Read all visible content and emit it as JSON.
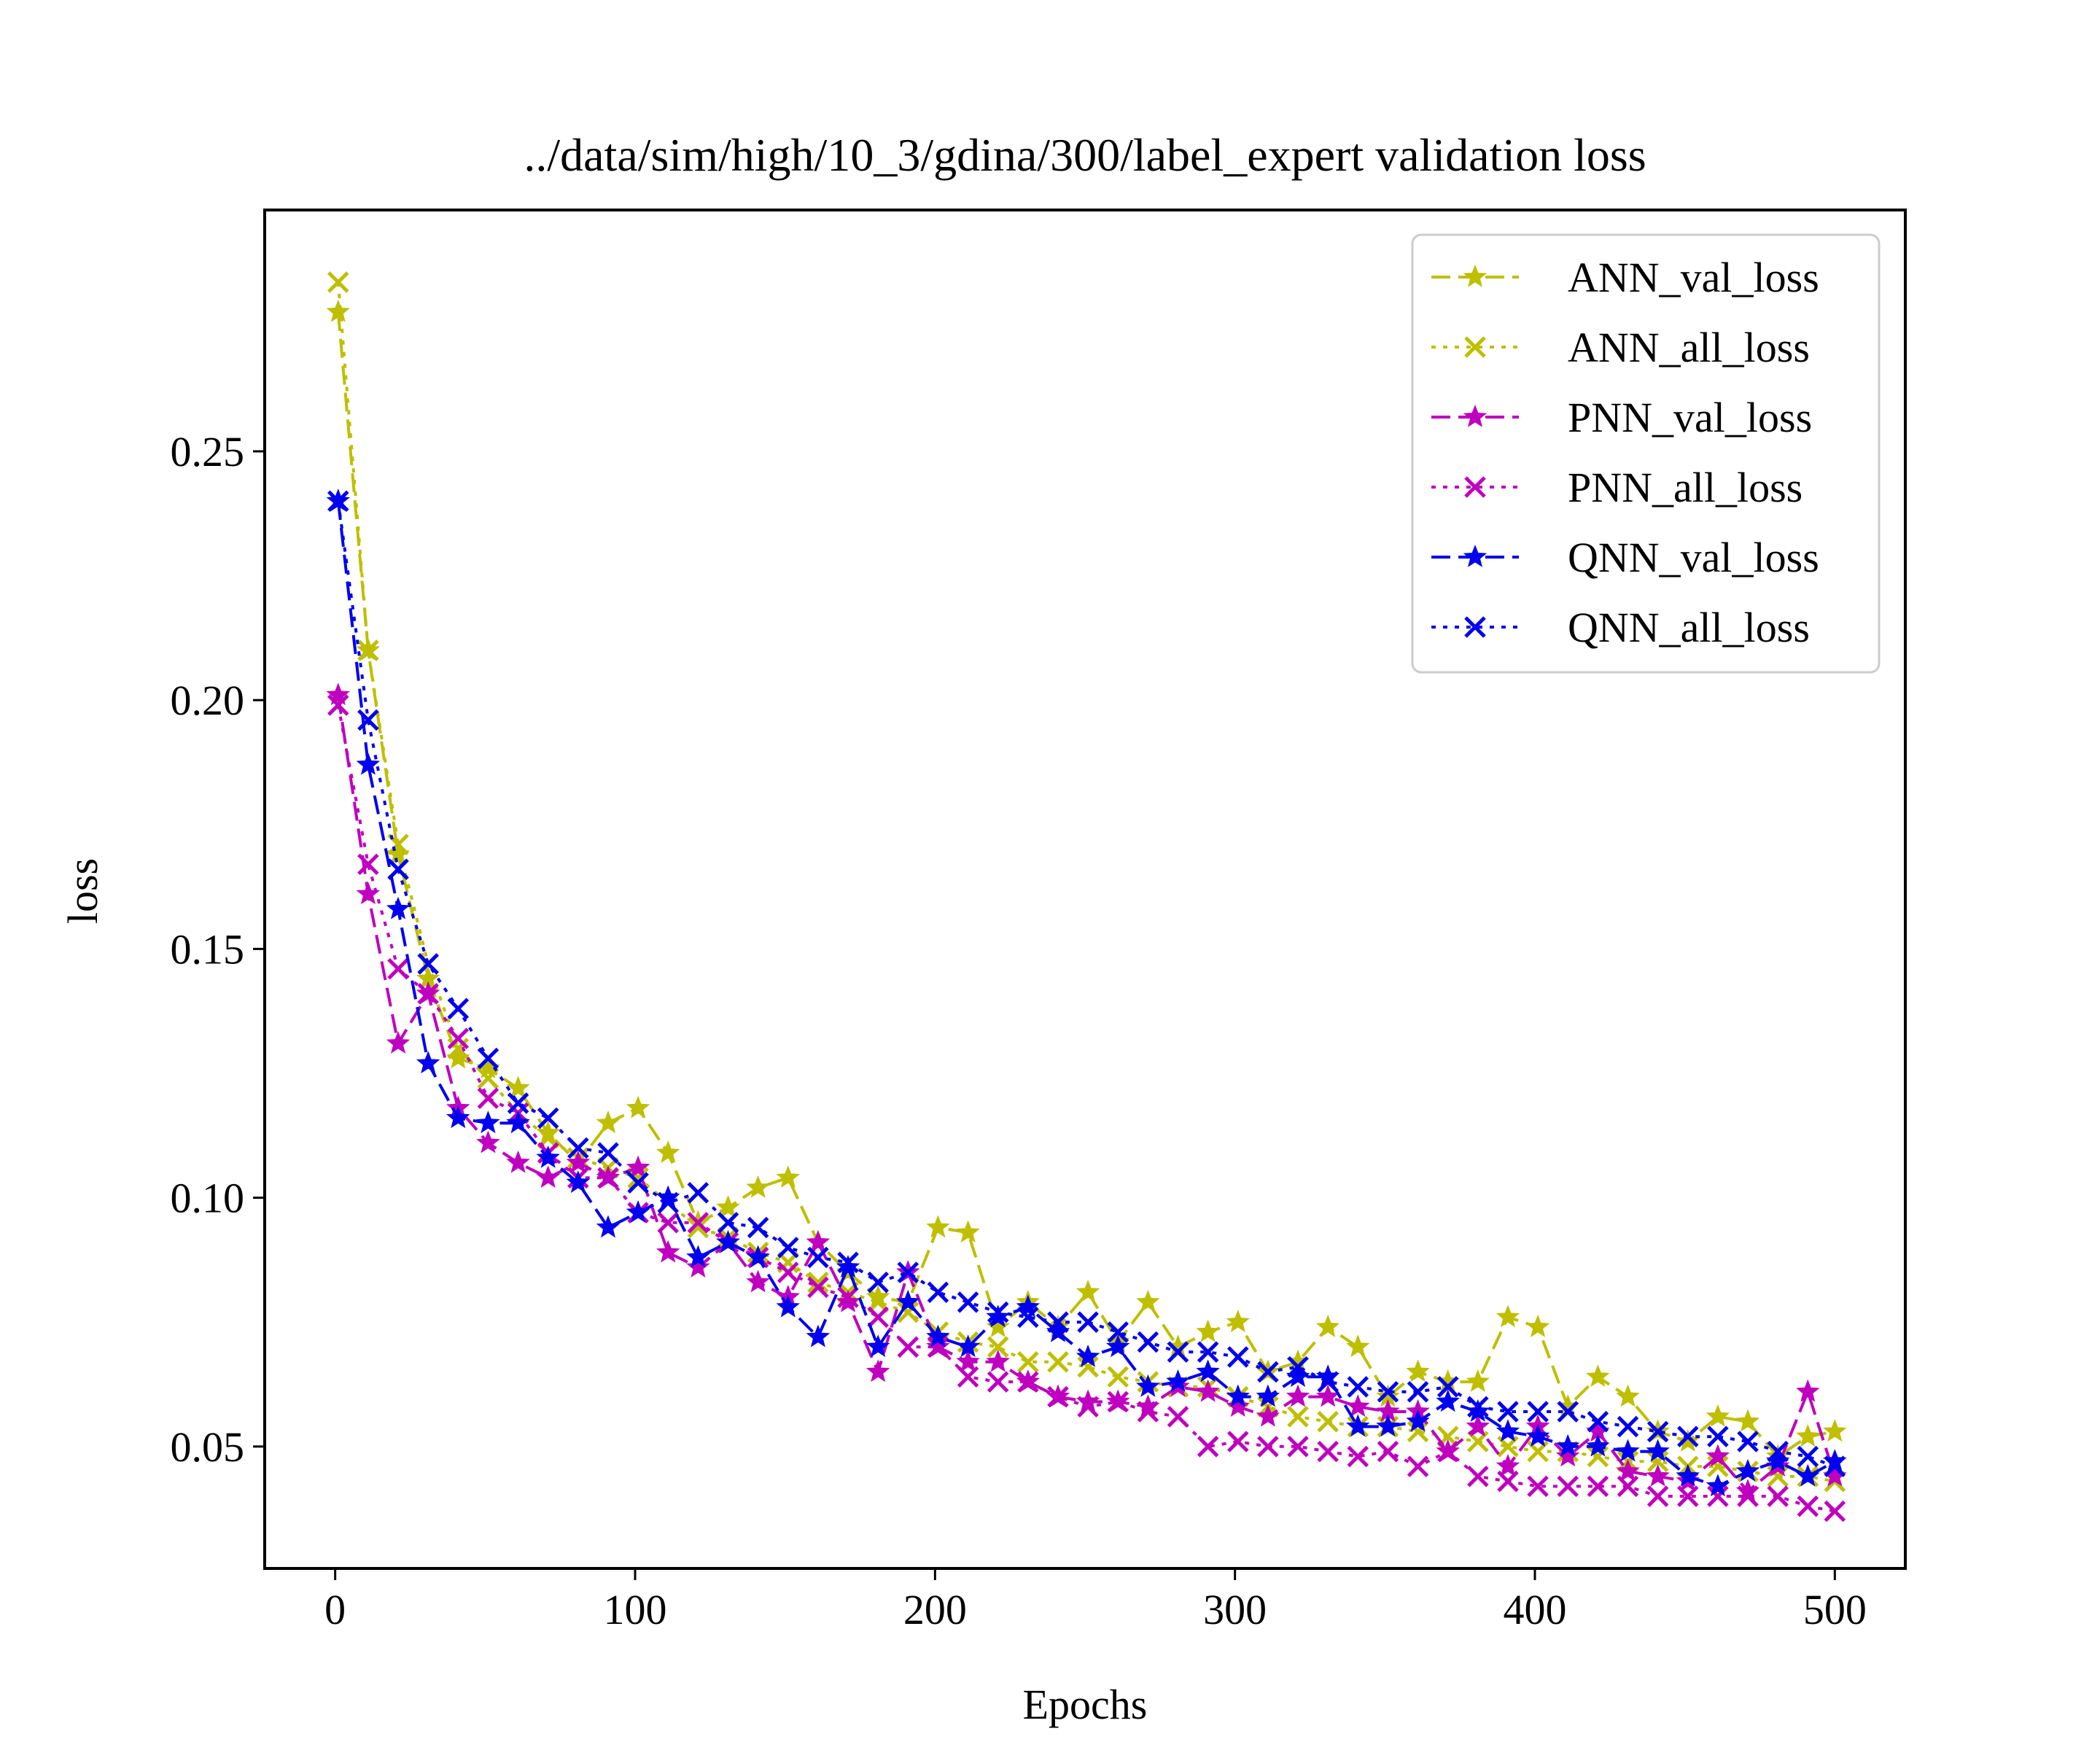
{
  "chart_data": {
    "type": "line",
    "title": "../data/sim/high/10_3/gdina/300/label_expert validation loss",
    "xlabel": "Epochs",
    "ylabel": "loss",
    "xlim": [
      -23.5,
      523.5
    ],
    "ylim": [
      0.0255,
      0.2985
    ],
    "xticks": [
      0,
      100,
      200,
      300,
      400,
      500
    ],
    "xtick_labels": [
      "0",
      "100",
      "200",
      "300",
      "400",
      "500"
    ],
    "yticks": [
      0.05,
      0.1,
      0.15,
      0.2,
      0.25
    ],
    "ytick_labels": [
      "0.05",
      "0.10",
      "0.15",
      "0.20",
      "0.25"
    ],
    "grid": false,
    "legend_position": "top-right",
    "x": [
      1,
      11,
      21,
      31,
      41,
      51,
      61,
      71,
      81,
      91,
      101,
      111,
      121,
      131,
      141,
      151,
      161,
      171,
      181,
      191,
      201,
      211,
      221,
      231,
      241,
      251,
      261,
      271,
      281,
      291,
      301,
      311,
      321,
      331,
      341,
      351,
      361,
      371,
      381,
      391,
      401,
      411,
      421,
      431,
      441,
      451,
      461,
      471,
      481,
      491,
      500
    ],
    "series": [
      {
        "name": "ANN_val_loss",
        "color": "#bfbf00",
        "line_style": "dashed",
        "marker": "star",
        "values": [
          0.278,
          0.21,
          0.169,
          0.144,
          0.128,
          0.126,
          0.122,
          0.113,
          0.107,
          0.115,
          0.118,
          0.109,
          0.095,
          0.098,
          0.102,
          0.104,
          0.091,
          0.085,
          0.08,
          0.079,
          0.094,
          0.093,
          0.074,
          0.079,
          0.074,
          0.081,
          0.071,
          0.079,
          0.07,
          0.073,
          0.075,
          0.065,
          0.067,
          0.074,
          0.07,
          0.06,
          0.065,
          0.063,
          0.063,
          0.076,
          0.074,
          0.058,
          0.064,
          0.06,
          0.053,
          0.051,
          0.056,
          0.055,
          0.048,
          0.052,
          0.053
        ]
      },
      {
        "name": "ANN_all_loss",
        "color": "#bfbf00",
        "line_style": "dotted",
        "marker": "x",
        "values": [
          0.284,
          0.21,
          0.171,
          0.147,
          0.13,
          0.124,
          0.117,
          0.112,
          0.108,
          0.106,
          0.104,
          0.099,
          0.094,
          0.092,
          0.089,
          0.087,
          0.083,
          0.081,
          0.079,
          0.077,
          0.073,
          0.071,
          0.07,
          0.067,
          0.067,
          0.066,
          0.064,
          0.063,
          0.062,
          0.062,
          0.06,
          0.058,
          0.056,
          0.055,
          0.054,
          0.054,
          0.053,
          0.052,
          0.051,
          0.05,
          0.049,
          0.049,
          0.048,
          0.047,
          0.047,
          0.046,
          0.046,
          0.045,
          0.044,
          0.044,
          0.043
        ]
      },
      {
        "name": "PNN_val_loss",
        "color": "#bf00bf",
        "line_style": "dashed",
        "marker": "star",
        "values": [
          0.201,
          0.161,
          0.131,
          0.141,
          0.118,
          0.111,
          0.107,
          0.104,
          0.107,
          0.104,
          0.106,
          0.089,
          0.086,
          0.091,
          0.083,
          0.08,
          0.091,
          0.079,
          0.065,
          0.085,
          0.07,
          0.067,
          0.067,
          0.063,
          0.06,
          0.059,
          0.059,
          0.058,
          0.062,
          0.061,
          0.058,
          0.056,
          0.06,
          0.06,
          0.058,
          0.057,
          0.057,
          0.049,
          0.054,
          0.046,
          0.054,
          0.048,
          0.053,
          0.045,
          0.044,
          0.043,
          0.048,
          0.041,
          0.046,
          0.061,
          0.044
        ]
      },
      {
        "name": "PNN_all_loss",
        "color": "#bf00bf",
        "line_style": "dotted",
        "marker": "x",
        "values": [
          0.199,
          0.167,
          0.146,
          0.141,
          0.132,
          0.12,
          0.117,
          0.109,
          0.104,
          0.104,
          0.097,
          0.095,
          0.095,
          0.091,
          0.088,
          0.085,
          0.082,
          0.08,
          0.076,
          0.07,
          0.07,
          0.064,
          0.063,
          0.063,
          0.06,
          0.058,
          0.059,
          0.057,
          0.056,
          0.05,
          0.051,
          0.05,
          0.05,
          0.049,
          0.048,
          0.049,
          0.046,
          0.049,
          0.044,
          0.043,
          0.042,
          0.042,
          0.042,
          0.042,
          0.04,
          0.04,
          0.04,
          0.04,
          0.04,
          0.038,
          0.037
        ]
      },
      {
        "name": "QNN_val_loss",
        "color": "#0000ee",
        "line_style": "dashed",
        "marker": "star",
        "values": [
          0.24,
          0.187,
          0.158,
          0.127,
          0.116,
          0.115,
          0.115,
          0.108,
          0.103,
          0.094,
          0.097,
          0.1,
          0.088,
          0.091,
          0.088,
          0.078,
          0.072,
          0.086,
          0.07,
          0.079,
          0.072,
          0.07,
          0.076,
          0.078,
          0.073,
          0.068,
          0.07,
          0.062,
          0.063,
          0.065,
          0.06,
          0.06,
          0.064,
          0.064,
          0.054,
          0.054,
          0.055,
          0.059,
          0.057,
          0.053,
          0.052,
          0.05,
          0.05,
          0.049,
          0.049,
          0.044,
          0.042,
          0.045,
          0.047,
          0.044,
          0.047
        ]
      },
      {
        "name": "QNN_all_loss",
        "color": "#0000ee",
        "line_style": "dotted",
        "marker": "x",
        "values": [
          0.24,
          0.196,
          0.166,
          0.147,
          0.138,
          0.128,
          0.119,
          0.116,
          0.11,
          0.109,
          0.103,
          0.099,
          0.101,
          0.095,
          0.094,
          0.09,
          0.088,
          0.087,
          0.083,
          0.085,
          0.081,
          0.079,
          0.077,
          0.076,
          0.075,
          0.075,
          0.073,
          0.071,
          0.069,
          0.069,
          0.068,
          0.065,
          0.066,
          0.063,
          0.062,
          0.061,
          0.061,
          0.062,
          0.058,
          0.057,
          0.057,
          0.057,
          0.055,
          0.054,
          0.053,
          0.052,
          0.052,
          0.051,
          0.049,
          0.048,
          0.046
        ]
      }
    ]
  }
}
